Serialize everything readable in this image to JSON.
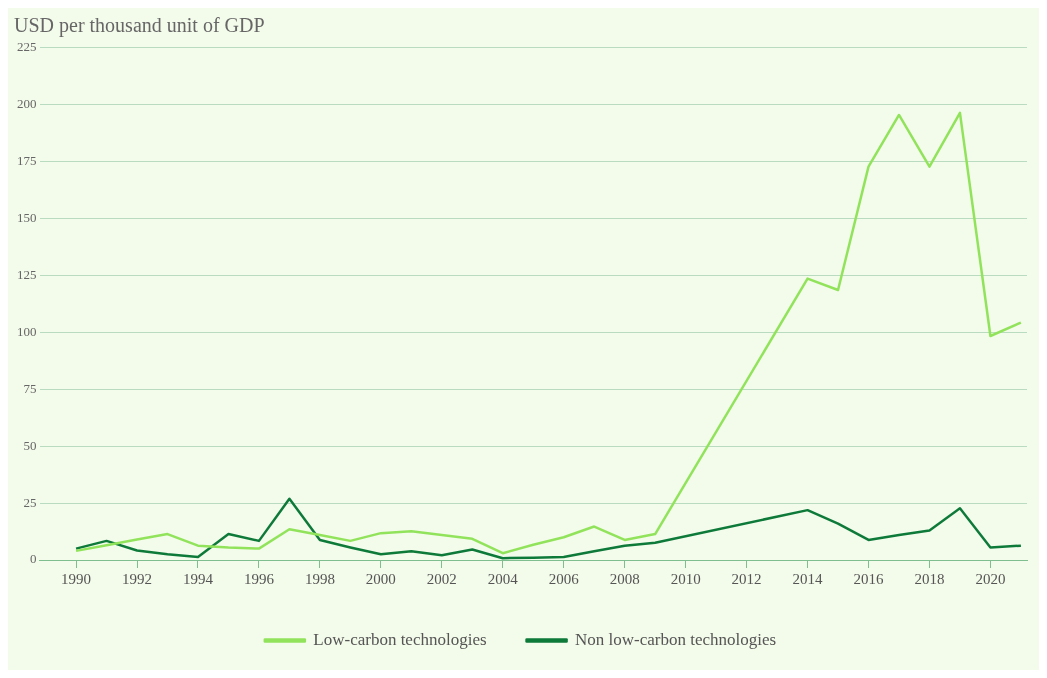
{
  "chart_data": {
    "type": "line",
    "ylabel": "USD per thousand unit of GDP",
    "xlim": [
      1988.8,
      2021.2
    ],
    "xticks": [
      1990,
      1992,
      1994,
      1996,
      1998,
      2000,
      2002,
      2004,
      2006,
      2008,
      2010,
      2012,
      2014,
      2016,
      2018,
      2020
    ],
    "ylim": [
      0,
      225
    ],
    "yticks": [
      0,
      25,
      50,
      75,
      100,
      125,
      150,
      175,
      200,
      225
    ],
    "grid": "y",
    "legend": "bottom",
    "marker": "none",
    "line_style": "solid",
    "series": [
      {
        "name": "Low-carbon technologies",
        "color": "#92e35c",
        "x": [
          1990,
          1991,
          1992,
          1993,
          1994,
          1995,
          1996,
          1997,
          1998,
          1999,
          2000,
          2001,
          2002,
          2003,
          2004,
          2005,
          2006,
          2007,
          2008,
          2009,
          2014,
          2015,
          2016,
          2017,
          2018,
          2019,
          2020,
          2021
        ],
        "values": [
          4,
          6.5,
          9,
          11.4,
          6.3,
          5.5,
          5,
          13.5,
          11,
          8.4,
          11.8,
          12.6,
          11,
          9.3,
          3,
          6.7,
          10,
          14.7,
          8.8,
          11.4,
          123.6,
          118.6,
          172.8,
          195.5,
          172.8,
          196.4,
          98.4,
          104.3
        ]
      },
      {
        "name": "Non low-carbon technologies",
        "color": "#0e7a3a",
        "x": [
          1990,
          1991,
          1992,
          1993,
          1994,
          1995,
          1996,
          1997,
          1998,
          1999,
          2000,
          2001,
          2002,
          2003,
          2004,
          2005,
          2006,
          2007,
          2008,
          2009,
          2014,
          2015,
          2016,
          2017,
          2018,
          2019,
          2020,
          2021
        ],
        "values": [
          5,
          8.4,
          4.2,
          2.5,
          1.3,
          11.4,
          8.4,
          26.9,
          8.8,
          5.5,
          2.5,
          3.8,
          2.1,
          4.6,
          0.8,
          1,
          1.3,
          3.8,
          6.3,
          7.6,
          21.9,
          16,
          8.8,
          11,
          13,
          22.7,
          5.5,
          6.3
        ]
      }
    ]
  }
}
